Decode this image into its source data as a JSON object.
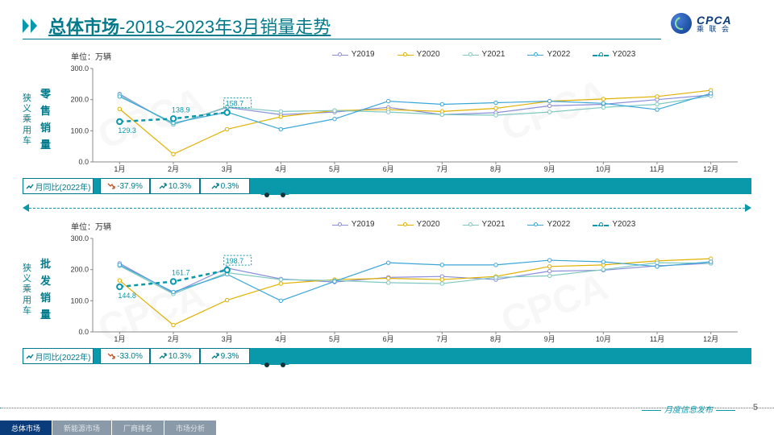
{
  "header": {
    "title_bold": "总体市场",
    "title_rest": "-2018~2023年3月销量走势",
    "logo_en": "CPCA",
    "logo_cn": "乘 联 会"
  },
  "legend": {
    "items": [
      {
        "label": "Y2019",
        "color": "#8a8fd8",
        "dashed": false,
        "thick": false
      },
      {
        "label": "Y2020",
        "color": "#e0b000",
        "dashed": false,
        "thick": false
      },
      {
        "label": "Y2021",
        "color": "#7ec8c0",
        "dashed": false,
        "thick": false
      },
      {
        "label": "Y2022",
        "color": "#3aa6d8",
        "dashed": false,
        "thick": false
      },
      {
        "label": "Y2023",
        "color": "#0a98ab",
        "dashed": true,
        "thick": true
      }
    ]
  },
  "axis": {
    "ylim": [
      0,
      300
    ],
    "yticks": [
      0.0,
      100.0,
      200.0,
      300.0
    ],
    "ytick_labels": [
      "0.0",
      "100.0",
      "200.0",
      "300.0"
    ],
    "months": [
      "1月",
      "2月",
      "3月",
      "4月",
      "5月",
      "6月",
      "7月",
      "8月",
      "9月",
      "10月",
      "11月",
      "12月"
    ],
    "unit_label": "单位：万辆"
  },
  "charts": [
    {
      "side_label": "狭义乘用车",
      "axis_title": "零售销量",
      "series": {
        "Y2019": [
          218,
          120,
          175,
          152,
          160,
          175,
          152,
          158,
          180,
          185,
          200,
          215
        ],
        "Y2020": [
          170,
          25,
          105,
          145,
          165,
          168,
          162,
          172,
          195,
          202,
          210,
          230
        ],
        "Y2021": [
          215,
          120,
          177,
          162,
          165,
          160,
          152,
          150,
          160,
          175,
          185,
          212
        ],
        "Y2022": [
          210,
          125,
          160,
          105,
          138,
          195,
          185,
          190,
          195,
          188,
          168,
          220
        ],
        "Y2023": [
          129.3,
          138.9,
          158.7
        ]
      },
      "callouts": [
        {
          "idx": 0,
          "value": "129.3",
          "boxed": false,
          "below": true
        },
        {
          "idx": 1,
          "value": "138.9",
          "boxed": false,
          "below": false
        },
        {
          "idx": 2,
          "value": "158.7",
          "boxed": true,
          "below": false
        }
      ],
      "yoy": {
        "label": "月同比(2022年)",
        "cells": [
          {
            "value": "-37.9%",
            "up": false
          },
          {
            "value": "10.3%",
            "up": true
          },
          {
            "value": "0.3%",
            "up": true
          }
        ]
      }
    },
    {
      "side_label": "狭义乘用车",
      "axis_title": "批发销量",
      "series": {
        "Y2019": [
          220,
          125,
          205,
          170,
          160,
          175,
          178,
          168,
          195,
          198,
          212,
          220
        ],
        "Y2020": [
          165,
          22,
          102,
          155,
          168,
          172,
          168,
          178,
          210,
          215,
          228,
          235
        ],
        "Y2021": [
          212,
          122,
          190,
          168,
          165,
          158,
          155,
          175,
          180,
          200,
          222,
          220
        ],
        "Y2022": [
          215,
          128,
          185,
          100,
          162,
          222,
          215,
          215,
          230,
          225,
          210,
          225
        ],
        "Y2023": [
          144.8,
          161.7,
          198.7
        ]
      },
      "callouts": [
        {
          "idx": 0,
          "value": "144.8",
          "boxed": false,
          "below": true
        },
        {
          "idx": 1,
          "value": "161.7",
          "boxed": false,
          "below": false
        },
        {
          "idx": 2,
          "value": "198.7",
          "boxed": true,
          "below": false
        }
      ],
      "yoy": {
        "label": "月同比(2022年)",
        "cells": [
          {
            "value": "-33.0%",
            "up": false
          },
          {
            "value": "10.3%",
            "up": true
          },
          {
            "value": "9.3%",
            "up": true
          }
        ]
      }
    }
  ],
  "footer": {
    "publication": "月度信息发布",
    "page": "5",
    "tabs": [
      "总体市场",
      "新能源市场",
      "厂商排名",
      "市场分析"
    ],
    "active_tab": 0
  },
  "colors": {
    "brand": "#007a8a",
    "bar_bg": "#0a98ab",
    "footer_tab_active": "#0a3b7a"
  }
}
